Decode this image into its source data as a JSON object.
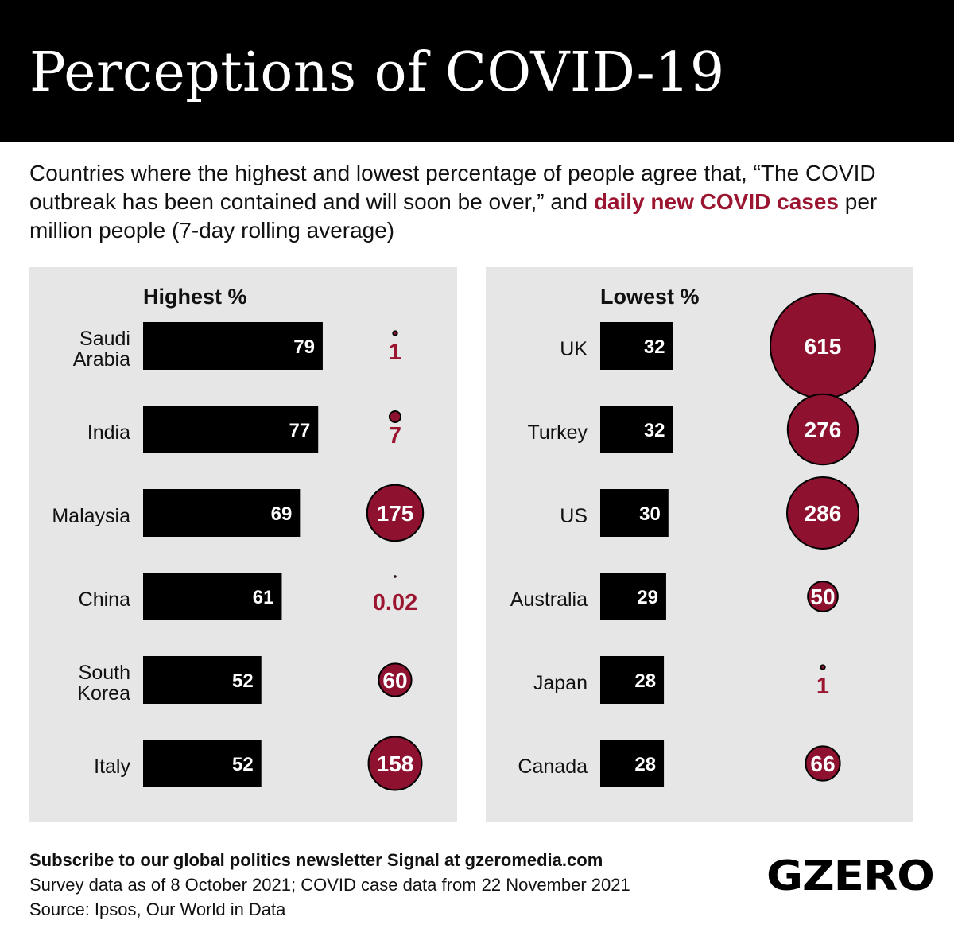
{
  "header": {
    "title": "Perceptions of COVID-19"
  },
  "subtitle": {
    "part1": "Countries where the highest and lowest percentage of people agree that, “The COVID outbreak has been contained and will soon be over,” and ",
    "highlight": "daily new COVID cases",
    "part2": " per million people (7-day rolling average)"
  },
  "colors": {
    "bar": "#000000",
    "bubble": "#8e1230",
    "label_red": "#9b1531",
    "panel": "#e6e6e6"
  },
  "chart_data": [
    {
      "type": "bar",
      "title": "Highest %",
      "categories": [
        "Saudi Arabia",
        "India",
        "Malaysia",
        "China",
        "South Korea",
        "Italy"
      ],
      "category_lines": [
        [
          "Saudi",
          "Arabia"
        ],
        [
          "India"
        ],
        [
          "Malaysia"
        ],
        [
          "China"
        ],
        [
          "South",
          "Korea"
        ],
        [
          "Italy"
        ]
      ],
      "values": [
        79,
        77,
        69,
        61,
        52,
        52
      ],
      "cases": [
        "1",
        "7",
        "175",
        "0.02",
        "60",
        "158"
      ],
      "cases_values": [
        1,
        7,
        175,
        0.02,
        60,
        158
      ]
    },
    {
      "type": "bar",
      "title": "Lowest %",
      "categories": [
        "UK",
        "Turkey",
        "US",
        "Australia",
        "Japan",
        "Canada"
      ],
      "category_lines": [
        [
          "UK"
        ],
        [
          "Turkey"
        ],
        [
          "US"
        ],
        [
          "Australia"
        ],
        [
          "Japan"
        ],
        [
          "Canada"
        ]
      ],
      "values": [
        32,
        32,
        30,
        29,
        28,
        28
      ],
      "cases": [
        "615",
        "276",
        "286",
        "50",
        "1",
        "66"
      ],
      "cases_values": [
        615,
        276,
        286,
        50,
        1,
        66
      ]
    }
  ],
  "footer": {
    "subscribe": "Subscribe to our global politics newsletter Signal at gzeromedia.com",
    "dates": "Survey data as of 8 October 2021; COVID case data from 22 November 2021",
    "source": "Source: Ipsos, Our World in Data"
  },
  "logo": "GZERO"
}
